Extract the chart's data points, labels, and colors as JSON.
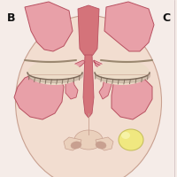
{
  "bg_color": "#f5ece8",
  "panel_label": "B",
  "right_panel_label": "C",
  "panel_label_fontsize": 9,
  "face_skin": "#f2ddd0",
  "face_outline": "#c8a090",
  "sinus_fill": "#d4737a",
  "sinus_fill_light": "#e8a0a8",
  "sinus_outline": "#b85060",
  "nasal_inner": "#c86070",
  "cyst_color": "#f0e880",
  "cyst_outline": "#c8c060",
  "nose_skin": "#ead0bc",
  "eye_lid_color": "#ecdcc8",
  "eyebrow_color": "#9a8870",
  "eyelash_color": "#7a6858",
  "eye_shadow": "#d4bba8"
}
